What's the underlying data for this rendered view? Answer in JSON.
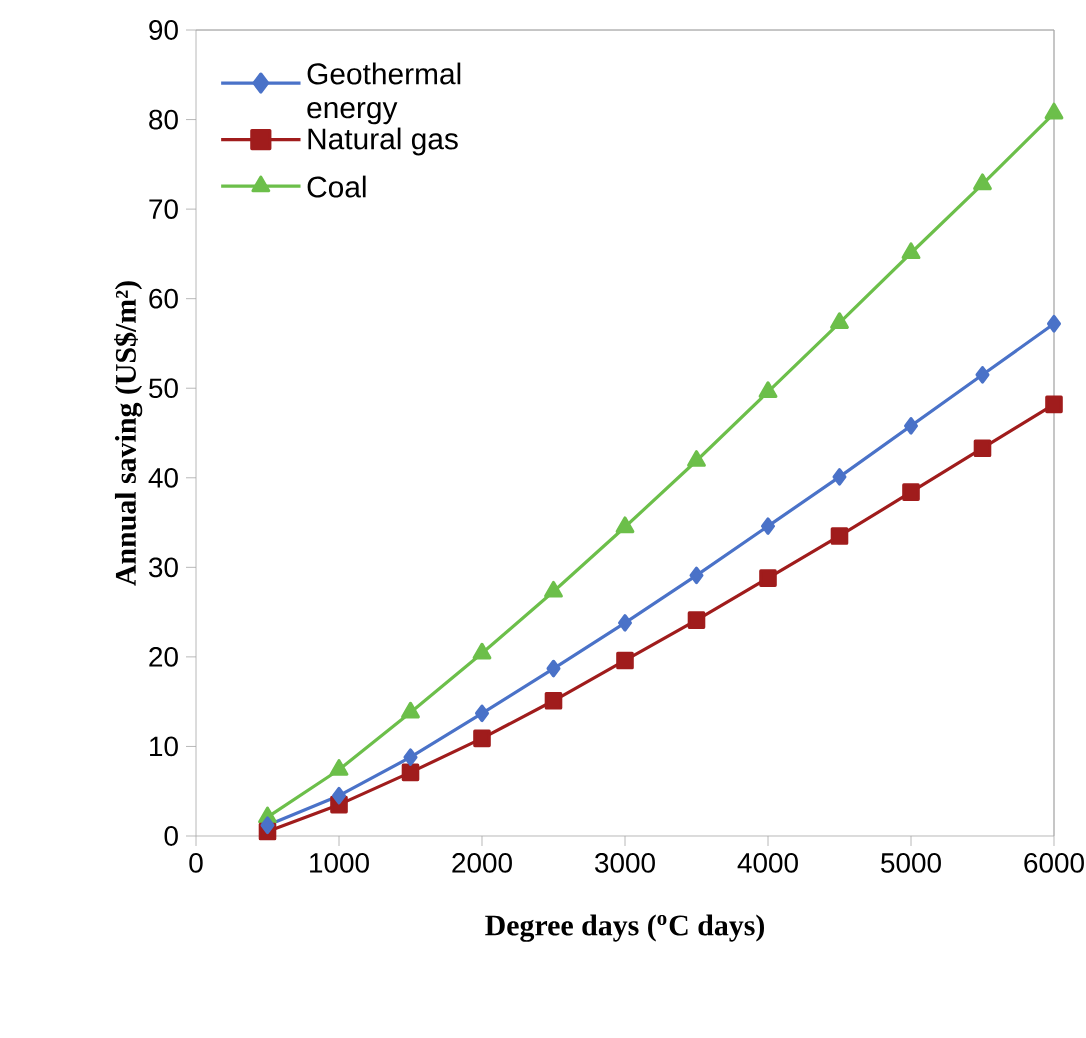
{
  "chart_data": {
    "type": "line",
    "xlabel": "Degree days ($^{o}$C days)",
    "ylabel": "Annual saving (US$/m²)",
    "x": [
      500,
      1000,
      1500,
      2000,
      2500,
      3000,
      3500,
      4000,
      4500,
      5000,
      5500,
      6000
    ],
    "series": [
      {
        "name": "Geothermal energy",
        "color": "#4a72c8",
        "marker": "diamond",
        "values": [
          1.2,
          4.5,
          8.8,
          13.7,
          18.7,
          23.8,
          29.1,
          34.6,
          40.1,
          45.8,
          51.5,
          57.2
        ]
      },
      {
        "name": "Natural gas",
        "color": "#a01c1c",
        "marker": "square",
        "values": [
          0.5,
          3.5,
          7.1,
          10.9,
          15.1,
          19.6,
          24.1,
          28.8,
          33.5,
          38.4,
          43.3,
          48.2
        ]
      },
      {
        "name": "Coal",
        "color": "#6cbf4a",
        "marker": "triangle",
        "values": [
          2.1,
          7.4,
          13.8,
          20.4,
          27.3,
          34.5,
          41.9,
          49.6,
          57.3,
          65.1,
          72.8,
          80.7
        ]
      }
    ],
    "xlim": [
      0,
      6000
    ],
    "ylim": [
      0,
      90
    ],
    "xticks": [
      0,
      1000,
      2000,
      3000,
      4000,
      5000,
      6000
    ],
    "yticks": [
      0,
      10,
      20,
      30,
      40,
      50,
      60,
      70,
      80,
      90
    ],
    "grid": false,
    "legend": "top left",
    "line_style": "solid"
  }
}
